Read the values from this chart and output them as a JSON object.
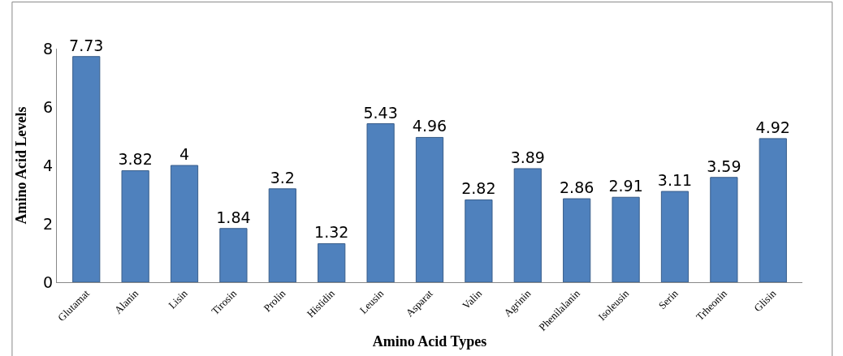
{
  "chart_data": {
    "type": "bar",
    "xlabel": "Amino Acid Types",
    "ylabel": "Amino Acid Levels",
    "categories": [
      "Glutamat",
      "Alanin",
      "Lisin",
      "Tirosin",
      "Prolin",
      "Histidin",
      "Leusin",
      "Asparat",
      "Valin",
      "Agrinin",
      "Phenilalanin",
      "Isoleusin",
      "Serin",
      "Trheonin",
      "Glisin"
    ],
    "values": [
      7.73,
      3.82,
      4,
      1.84,
      3.2,
      1.32,
      5.43,
      4.96,
      2.82,
      3.89,
      2.86,
      2.91,
      3.11,
      3.59,
      4.92
    ],
    "color": "#4f81bd",
    "ylim": [
      0,
      8
    ],
    "yticks": [
      0,
      2,
      4,
      6,
      8
    ],
    "data_labels": true,
    "legend": false
  }
}
